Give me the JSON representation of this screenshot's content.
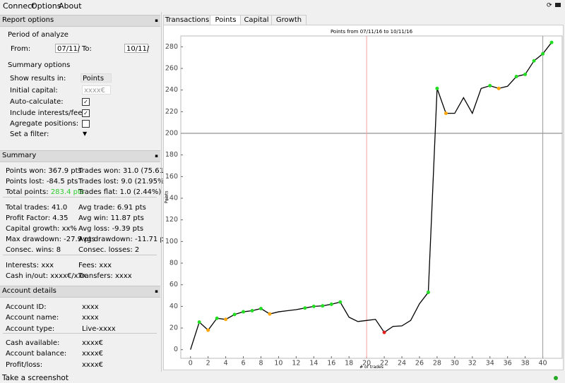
{
  "menu": [
    "Connect",
    "Options",
    "About"
  ],
  "tabs": [
    "Transactions",
    "Points",
    "Capital",
    "Growth"
  ],
  "active_tab": 1,
  "report_options": {
    "title": "Report options",
    "period_title": "Period of analyze",
    "from_label": "From:",
    "from_value": "07/11/",
    "to_label": "To:",
    "to_value": "10/11/",
    "summary_title": "Summary options",
    "fields": [
      {
        "label": "Show results in:",
        "value": "Points"
      },
      {
        "label": "Initial capital:",
        "placeholder": "xxxx€"
      },
      {
        "label": "Auto-calculate:",
        "checked": true
      },
      {
        "label": "Include interests/fees:",
        "checked": true
      },
      {
        "label": "Agregate positions:",
        "checked": false
      },
      {
        "label": "Set a filter:"
      }
    ]
  },
  "summary": {
    "title": "Summary",
    "groups": [
      [
        [
          {
            "label": "Points won:",
            "value": "367.9 pts"
          },
          {
            "label": "Trades won:",
            "value": "31.0 (75.61%)"
          }
        ],
        [
          {
            "label": "Points lost:",
            "value": "-84.5 pts"
          },
          {
            "label": "Trades lost:",
            "value": "9.0 (21.95%)"
          }
        ],
        [
          {
            "label": "Total points:",
            "value": "283.4 pts",
            "color": "#2ecc2e"
          },
          {
            "label": "Trades flat:",
            "value": "1.0 (2.44%)"
          }
        ]
      ],
      [
        [
          {
            "label": "Total trades:",
            "value": "41.0"
          },
          {
            "label": "Avg trade:",
            "value": "6.91 pts"
          }
        ],
        [
          {
            "label": "Profit Factor:",
            "value": "4.35"
          },
          {
            "label": "Avg win:",
            "value": "11.87 pts"
          }
        ],
        [
          {
            "label": "Capital growth:",
            "value": "xx%"
          },
          {
            "label": "Avg loss:",
            "value": "-9.39 pts"
          }
        ],
        [
          {
            "label": "Max drawdown:",
            "value": "-27.9 pts"
          },
          {
            "label": "Avg drawdown:",
            "value": "-11.71 pts"
          }
        ],
        [
          {
            "label": "Consec. wins:",
            "value": "8"
          },
          {
            "label": "Consec. losses:",
            "value": "2"
          }
        ]
      ],
      [
        [
          {
            "label": "Interests:",
            "value": "xxx"
          },
          {
            "label": "Fees:",
            "value": "xxx"
          }
        ],
        [
          {
            "label": "Cash in/out:",
            "value": "xxxx€/xxx"
          },
          {
            "label": "Transfers:",
            "value": "xxxx"
          }
        ]
      ]
    ]
  },
  "account": {
    "title": "Account details",
    "groups": [
      [
        {
          "label": "Account ID:",
          "value": "xxxx"
        },
        {
          "label": "Account name:",
          "value": "xxxx"
        },
        {
          "label": "Account type:",
          "value": "Live-xxxx"
        }
      ],
      [
        {
          "label": "Cash available:",
          "value": "xxxx€"
        },
        {
          "label": "Account balance:",
          "value": "xxxx€"
        },
        {
          "label": "Profit/loss:",
          "value": "xxxx€"
        }
      ]
    ]
  },
  "status": "Take a screenshot",
  "chart_data": {
    "type": "line",
    "title": "Points from 07/11/16 to 10/11/16",
    "x_label": "# of trades",
    "y_label": "Points",
    "x": [
      0,
      1,
      2,
      3,
      4,
      5,
      6,
      7,
      8,
      9,
      10,
      11,
      12,
      13,
      14,
      15,
      16,
      17,
      18,
      19,
      20,
      21,
      22,
      23,
      24,
      25,
      26,
      27,
      28,
      29,
      30,
      31,
      32,
      33,
      34,
      35,
      36,
      37,
      38,
      39,
      40,
      41
    ],
    "series": [
      {
        "color": "#000000",
        "values": [
          0,
          25.5,
          18,
          29,
          28,
          32.5,
          35,
          36,
          38,
          33,
          35,
          36,
          37,
          38.5,
          40,
          40.5,
          42,
          44,
          30,
          26,
          27,
          28,
          16,
          21.5,
          22,
          27,
          42.5,
          53,
          241.5,
          218.5,
          218.5,
          233,
          218.5,
          241.5,
          244,
          241.5,
          243.5,
          252.5,
          254.5,
          267,
          273.5,
          284
        ],
        "marker_colors": [
          null,
          "#22dd22",
          "#ffa500",
          "#22dd22",
          "#ffa500",
          "#22dd22",
          "#22dd22",
          "#22dd22",
          "#22dd22",
          "#ffa500",
          null,
          null,
          null,
          "#22dd22",
          "#22dd22",
          "#22dd22",
          "#22dd22",
          "#22dd22",
          null,
          null,
          null,
          null,
          "#e02020",
          null,
          null,
          null,
          null,
          "#22dd22",
          "#22dd22",
          "#ffa500",
          null,
          null,
          null,
          null,
          "#22dd22",
          "#ffa500",
          null,
          "#22dd22",
          "#22dd22",
          "#22dd22",
          "#22dd22",
          "#22dd22"
        ]
      }
    ],
    "xlim": [
      -1.1,
      42.2
    ],
    "ylim": [
      -8,
      290
    ],
    "xticks": [
      0,
      2,
      4,
      6,
      8,
      10,
      12,
      14,
      16,
      18,
      20,
      22,
      24,
      26,
      28,
      30,
      32,
      34,
      36,
      38,
      40
    ],
    "yticks": [
      0,
      20,
      40,
      60,
      80,
      100,
      120,
      140,
      160,
      180,
      200,
      220,
      240,
      260,
      280
    ],
    "reference_lines": {
      "y": [
        {
          "value": 200,
          "color": "#777777"
        }
      ],
      "x": [
        {
          "value": 20,
          "color": "#f4a0a0"
        },
        {
          "value": 40,
          "color": "#999999"
        }
      ]
    }
  }
}
